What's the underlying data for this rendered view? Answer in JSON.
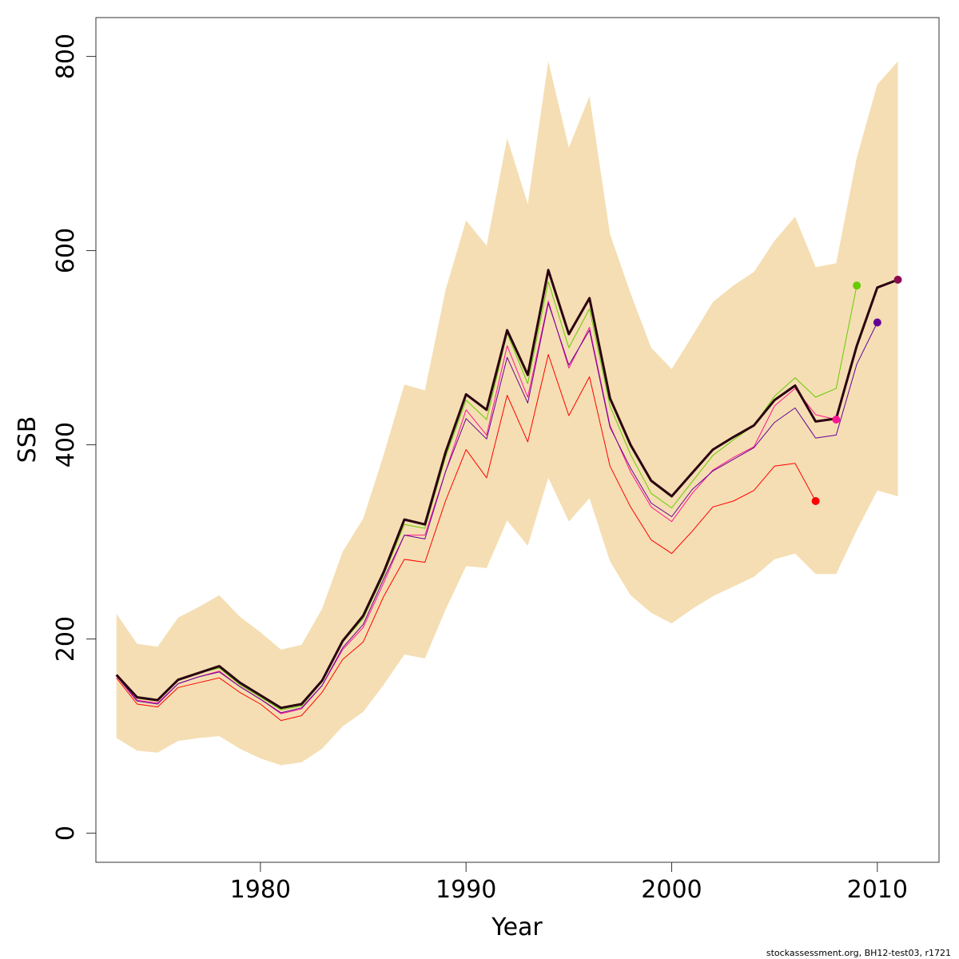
{
  "chart_data": {
    "type": "line",
    "xlabel": "Year",
    "ylabel": "SSB",
    "xlim": [
      1972,
      2013
    ],
    "ylim": [
      -30,
      840
    ],
    "x_ticks": [
      1980,
      1990,
      2000,
      2010
    ],
    "y_ticks": [
      0,
      200,
      400,
      600,
      800
    ],
    "band_color": "#f5deb3",
    "band": {
      "x": [
        1973,
        1974,
        1975,
        1976,
        1977,
        1978,
        1979,
        1980,
        1981,
        1982,
        1983,
        1984,
        1985,
        1986,
        1987,
        1988,
        1989,
        1990,
        1991,
        1992,
        1993,
        1994,
        1995,
        1996,
        1997,
        1998,
        1999,
        2000,
        2001,
        2002,
        2003,
        2004,
        2005,
        2006,
        2007,
        2008,
        2009,
        2010,
        2011
      ],
      "lower": [
        98,
        85,
        83,
        95,
        98,
        100,
        87,
        77,
        70,
        73,
        87,
        110,
        125,
        153,
        184,
        180,
        230,
        275,
        273,
        322,
        296,
        366,
        321,
        345,
        280,
        245,
        227,
        216,
        231,
        244,
        254,
        264,
        282,
        288,
        267,
        267,
        312,
        353,
        347
      ],
      "upper": [
        226,
        195,
        192,
        222,
        233,
        245,
        223,
        207,
        189,
        194,
        231,
        290,
        324,
        390,
        462,
        456,
        559,
        631,
        605,
        716,
        648,
        795,
        706,
        759,
        617,
        556,
        500,
        478,
        512,
        547,
        564,
        578,
        610,
        635,
        583,
        587,
        696,
        771,
        795
      ]
    },
    "series": [
      {
        "color": "#ff0000",
        "x": [
          1973,
          1974,
          1975,
          1976,
          1977,
          1978,
          1979,
          1980,
          1981,
          1982,
          1983,
          1984,
          1985,
          1986,
          1987,
          1988,
          1989,
          1990,
          1991,
          1992,
          1993,
          1994,
          1995,
          1996,
          1997,
          1998,
          1999,
          2000,
          2001,
          2002,
          2003,
          2004,
          2005,
          2006,
          2007
        ],
        "values": [
          160,
          133,
          130,
          150,
          155,
          160,
          145,
          133,
          116,
          121,
          145,
          179,
          197,
          244,
          282,
          279,
          342,
          395,
          366,
          451,
          403,
          493,
          430,
          470,
          378,
          336,
          302,
          288,
          311,
          336,
          342,
          353,
          378,
          381,
          342
        ],
        "end_point": true
      },
      {
        "color": "#ff1493",
        "x": [
          1973,
          1974,
          1975,
          1976,
          1977,
          1978,
          1979,
          1980,
          1981,
          1982,
          1983,
          1984,
          1985,
          1986,
          1987,
          1988,
          1989,
          1990,
          1991,
          1992,
          1993,
          1994,
          1995,
          1996,
          1997,
          1998,
          1999,
          2000,
          2001,
          2002,
          2003,
          2004,
          2005,
          2006,
          2007,
          2008
        ],
        "values": [
          162,
          137,
          134,
          154,
          161,
          167,
          151,
          138,
          123,
          128,
          152,
          189,
          212,
          258,
          307,
          307,
          372,
          436,
          410,
          502,
          449,
          548,
          479,
          521,
          420,
          372,
          336,
          321,
          350,
          374,
          387,
          398,
          440,
          458,
          431,
          426
        ],
        "end_point": true
      },
      {
        "color": "#66cc00",
        "x": [
          1973,
          1974,
          1975,
          1976,
          1977,
          1978,
          1979,
          1980,
          1981,
          1982,
          1983,
          1984,
          1985,
          1986,
          1987,
          1988,
          1989,
          1990,
          1991,
          1992,
          1993,
          1994,
          1995,
          1996,
          1997,
          1998,
          1999,
          2000,
          2001,
          2002,
          2003,
          2004,
          2005,
          2006,
          2007,
          2008,
          2009
        ],
        "values": [
          163,
          139,
          136,
          157,
          165,
          170,
          153,
          140,
          127,
          131,
          156,
          197,
          221,
          266,
          318,
          314,
          387,
          446,
          426,
          515,
          463,
          568,
          500,
          540,
          440,
          390,
          350,
          335,
          362,
          389,
          405,
          420,
          450,
          469,
          449,
          458,
          564
        ],
        "end_point": true
      },
      {
        "color": "#660099",
        "x": [
          1973,
          1974,
          1975,
          1976,
          1977,
          1978,
          1979,
          1980,
          1981,
          1982,
          1983,
          1984,
          1985,
          1986,
          1987,
          1988,
          1989,
          1990,
          1991,
          1992,
          1993,
          1994,
          1995,
          1996,
          1997,
          1998,
          1999,
          2000,
          2001,
          2002,
          2003,
          2004,
          2005,
          2006,
          2007,
          2008,
          2009,
          2010
        ],
        "values": [
          162,
          136,
          133,
          154,
          161,
          166,
          151,
          138,
          124,
          129,
          152,
          191,
          215,
          262,
          307,
          303,
          372,
          427,
          406,
          490,
          443,
          546,
          482,
          518,
          418,
          376,
          340,
          326,
          354,
          373,
          385,
          397,
          423,
          438,
          407,
          410,
          483,
          526
        ],
        "end_point": true
      },
      {
        "color": "#8b0a50",
        "x": [
          1973,
          1974,
          1975,
          1976,
          1977,
          1978,
          1979,
          1980,
          1981,
          1982,
          1983,
          1984,
          1985,
          1986,
          1987,
          1988,
          1989,
          1990,
          1991,
          1992,
          1993,
          1994,
          1995,
          1996,
          1997,
          1998,
          1999,
          2000,
          2001,
          2002,
          2003,
          2004,
          2005,
          2006,
          2007,
          2008,
          2009,
          2010,
          2011
        ],
        "values": [
          163,
          140,
          137,
          158,
          165,
          172,
          155,
          142,
          129,
          133,
          157,
          198,
          224,
          269,
          323,
          318,
          392,
          452,
          436,
          518,
          472,
          580,
          514,
          551,
          448,
          400,
          363,
          347,
          371,
          395,
          408,
          420,
          446,
          461,
          424,
          427,
          502,
          562,
          570
        ],
        "end_point": true
      },
      {
        "color": "#2a0010",
        "thick": true,
        "x": [
          1973,
          1974,
          1975,
          1976,
          1977,
          1978,
          1979,
          1980,
          1981,
          1982,
          1983,
          1984,
          1985,
          1986,
          1987,
          1988,
          1989,
          1990,
          1991,
          1992,
          1993,
          1994,
          1995,
          1996,
          1997,
          1998,
          1999,
          2000,
          2001,
          2002,
          2003,
          2004,
          2005,
          2006,
          2007,
          2008,
          2009,
          2010,
          2011
        ],
        "values": [
          163,
          140,
          137,
          158,
          165,
          172,
          155,
          142,
          129,
          133,
          157,
          198,
          224,
          269,
          323,
          318,
          392,
          452,
          436,
          518,
          472,
          580,
          514,
          551,
          448,
          400,
          363,
          347,
          371,
          395,
          408,
          420,
          446,
          461,
          424,
          427,
          502,
          562,
          570
        ],
        "end_point": false
      }
    ]
  },
  "footer": "stockassessment.org, BH12-test03, r1721"
}
